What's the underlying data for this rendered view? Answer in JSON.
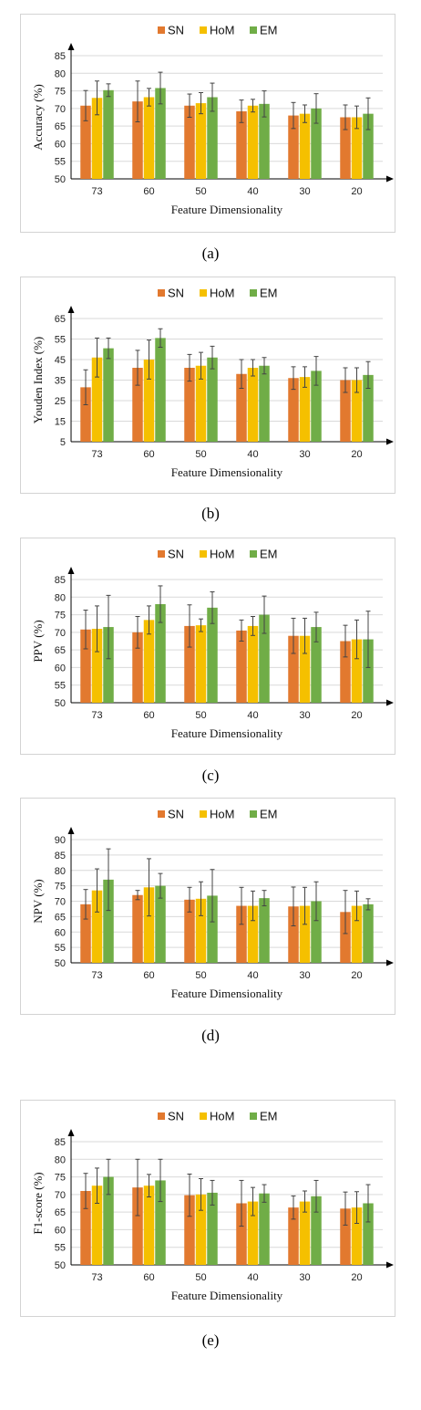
{
  "legend": [
    "SN",
    "HoM",
    "EM"
  ],
  "colors": [
    "#E2792F",
    "#F5C000",
    "#70AD47"
  ],
  "chart_data": [
    {
      "type": "bar",
      "caption": "(a)",
      "xlabel": "Feature Dimensionality",
      "ylabel": "Accuracy (%)",
      "categories": [
        "73",
        "60",
        "50",
        "40",
        "30",
        "20"
      ],
      "ylim": [
        50,
        85
      ],
      "yticks": [
        50,
        55,
        60,
        65,
        70,
        75,
        80,
        85
      ],
      "grid": true,
      "legend_position": "top",
      "series": [
        {
          "name": "SN",
          "values": [
            70.8,
            72.0,
            70.8,
            69.2,
            68.0,
            67.5
          ],
          "errors": [
            4.3,
            5.8,
            3.3,
            3.2,
            3.7,
            3.5
          ]
        },
        {
          "name": "HoM",
          "values": [
            73.0,
            73.2,
            71.5,
            70.8,
            68.5,
            67.5
          ],
          "errors": [
            4.8,
            2.5,
            3.0,
            1.8,
            2.5,
            3.2
          ]
        },
        {
          "name": "EM",
          "values": [
            75.2,
            75.8,
            73.2,
            71.3,
            70.0,
            68.5
          ],
          "errors": [
            1.8,
            4.5,
            4.0,
            3.7,
            4.2,
            4.5
          ]
        }
      ]
    },
    {
      "type": "bar",
      "caption": "(b)",
      "xlabel": "Feature Dimensionality",
      "ylabel": "Youden Index (%)",
      "categories": [
        "73",
        "60",
        "50",
        "40",
        "30",
        "20"
      ],
      "ylim": [
        5,
        65
      ],
      "yticks": [
        5,
        15,
        25,
        35,
        45,
        55,
        65
      ],
      "grid": true,
      "legend_position": "top",
      "series": [
        {
          "name": "SN",
          "values": [
            31.5,
            41.0,
            41.0,
            38.0,
            36.0,
            35.0
          ],
          "errors": [
            8.5,
            8.5,
            6.5,
            7.0,
            5.5,
            6.0
          ]
        },
        {
          "name": "HoM",
          "values": [
            46.0,
            45.0,
            42.0,
            41.0,
            36.5,
            35.0
          ],
          "errors": [
            9.5,
            9.5,
            6.5,
            4.0,
            5.0,
            6.0
          ]
        },
        {
          "name": "EM",
          "values": [
            50.5,
            55.5,
            46.0,
            42.0,
            39.5,
            37.5
          ],
          "errors": [
            5.0,
            4.5,
            5.5,
            4.0,
            7.0,
            6.5
          ]
        }
      ]
    },
    {
      "type": "bar",
      "caption": "(c)",
      "xlabel": "Feature Dimensionality",
      "ylabel": "PPV (%)",
      "categories": [
        "73",
        "60",
        "50",
        "40",
        "30",
        "20"
      ],
      "ylim": [
        50,
        85
      ],
      "yticks": [
        50,
        55,
        60,
        65,
        70,
        75,
        80,
        85
      ],
      "grid": true,
      "legend_position": "top",
      "series": [
        {
          "name": "SN",
          "values": [
            70.8,
            70.0,
            71.8,
            70.5,
            69.0,
            67.5
          ],
          "errors": [
            5.5,
            4.5,
            6.0,
            3.0,
            5.0,
            4.5
          ]
        },
        {
          "name": "HoM",
          "values": [
            71.0,
            73.5,
            72.0,
            71.8,
            69.0,
            68.0
          ],
          "errors": [
            6.5,
            4.0,
            1.8,
            2.7,
            5.0,
            5.5
          ]
        },
        {
          "name": "EM",
          "values": [
            71.5,
            78.0,
            77.0,
            75.0,
            71.5,
            68.0
          ],
          "errors": [
            9.0,
            5.2,
            4.5,
            5.3,
            4.2,
            8.0
          ]
        }
      ]
    },
    {
      "type": "bar",
      "caption": "(d)",
      "xlabel": "Feature Dimensionality",
      "ylabel": "NPV (%)",
      "categories": [
        "73",
        "60",
        "50",
        "40",
        "30",
        "20"
      ],
      "ylim": [
        50,
        90
      ],
      "yticks": [
        50,
        55,
        60,
        65,
        70,
        75,
        80,
        85,
        90
      ],
      "grid": true,
      "legend_position": "top",
      "series": [
        {
          "name": "SN",
          "values": [
            69.0,
            72.0,
            70.5,
            68.5,
            68.3,
            66.5
          ],
          "errors": [
            4.8,
            1.5,
            4.0,
            6.0,
            6.3,
            7.0
          ]
        },
        {
          "name": "HoM",
          "values": [
            73.5,
            74.5,
            70.8,
            68.5,
            68.5,
            68.5
          ],
          "errors": [
            7.0,
            9.3,
            5.5,
            4.8,
            6.0,
            4.8
          ]
        },
        {
          "name": "EM",
          "values": [
            77.0,
            75.0,
            71.8,
            71.0,
            70.0,
            69.0
          ],
          "errors": [
            10.0,
            4.0,
            8.5,
            2.5,
            6.3,
            1.8
          ]
        }
      ]
    },
    {
      "type": "bar",
      "caption": "(e)",
      "xlabel": "Feature Dimensionality",
      "ylabel": "F1-score (%)",
      "categories": [
        "73",
        "60",
        "50",
        "40",
        "30",
        "20"
      ],
      "ylim": [
        50,
        85
      ],
      "yticks": [
        50,
        55,
        60,
        65,
        70,
        75,
        80,
        85
      ],
      "grid": true,
      "legend_position": "top",
      "series": [
        {
          "name": "SN",
          "values": [
            71.0,
            72.0,
            69.8,
            67.5,
            66.3,
            66.0
          ],
          "errors": [
            5.0,
            8.0,
            6.0,
            6.5,
            3.3,
            4.7
          ]
        },
        {
          "name": "HoM",
          "values": [
            72.5,
            72.5,
            70.0,
            68.0,
            68.0,
            66.3
          ],
          "errors": [
            5.0,
            3.2,
            4.5,
            4.0,
            3.0,
            4.5
          ]
        },
        {
          "name": "EM",
          "values": [
            75.0,
            74.0,
            70.5,
            70.3,
            69.5,
            67.5
          ],
          "errors": [
            5.0,
            6.0,
            3.5,
            2.5,
            4.5,
            5.3
          ]
        }
      ]
    }
  ]
}
